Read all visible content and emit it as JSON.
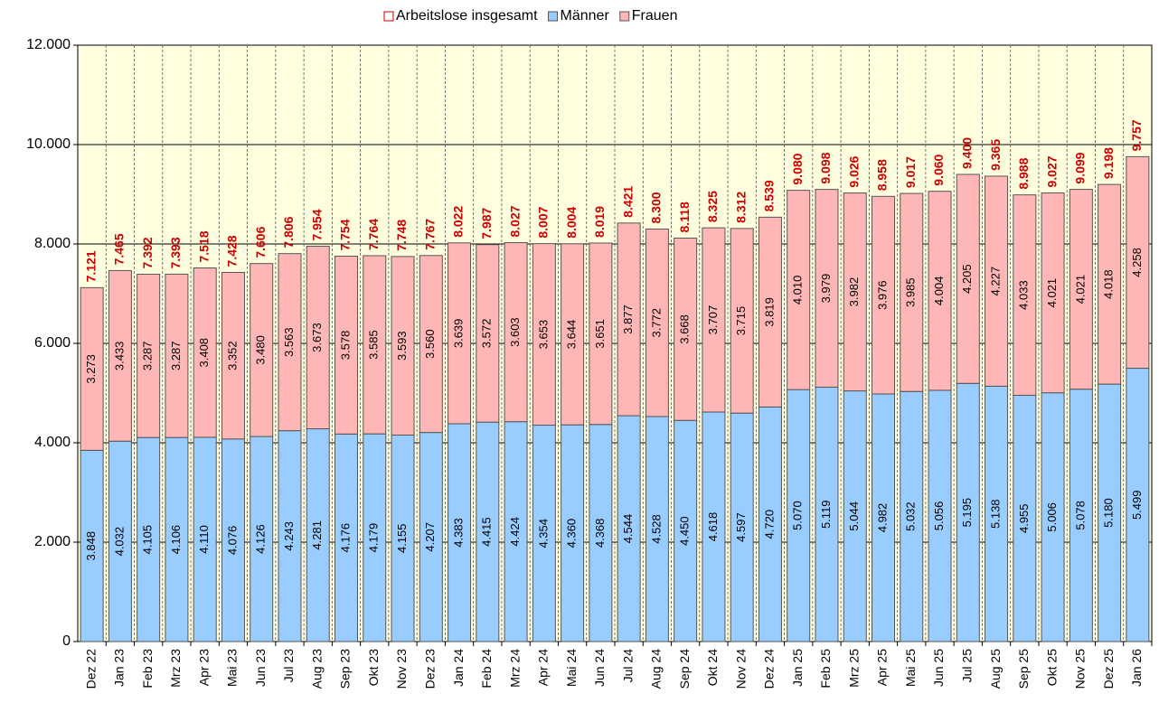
{
  "chart_data": {
    "type": "stacked_bar",
    "categories": [
      "Dez 22",
      "Jan 23",
      "Feb 23",
      "Mrz 23",
      "Apr 23",
      "Mai 23",
      "Jun 23",
      "Jul 23",
      "Aug 23",
      "Sep 23",
      "Okt 23",
      "Nov 23",
      "Dez 23",
      "Jan 24",
      "Feb 24",
      "Mrz 24",
      "Apr 24",
      "Mai 24",
      "Jun 24",
      "Jul 24",
      "Aug 24",
      "Sep 24",
      "Okt 24",
      "Nov 24",
      "Dez 24",
      "Jan 25",
      "Feb 25",
      "Mrz 25",
      "Apr 25",
      "Mai 25",
      "Jun 25",
      "Jul 25",
      "Aug 25",
      "Sep 25",
      "Okt 25",
      "Nov 25",
      "Dez 25",
      "Jan 26"
    ],
    "totals": {
      "name": "Arbeitslose insgesamt",
      "color": "#cc0000",
      "values": [
        7121,
        7465,
        7392,
        7393,
        7518,
        7428,
        7606,
        7806,
        7954,
        7754,
        7764,
        7748,
        7767,
        8022,
        7987,
        8027,
        8007,
        8004,
        8019,
        8421,
        8300,
        8118,
        8325,
        8312,
        8539,
        9080,
        9098,
        9026,
        8958,
        9017,
        9060,
        9400,
        9365,
        8988,
        9027,
        9099,
        9198,
        9757
      ],
      "value_labels": [
        "7.121",
        "7.465",
        "7.392",
        "7.393",
        "7.518",
        "7.428",
        "7.606",
        "7.806",
        "7.954",
        "7.754",
        "7.764",
        "7.748",
        "7.767",
        "8.022",
        "7.987",
        "8.027",
        "8.007",
        "8.004",
        "8.019",
        "8.421",
        "8.300",
        "8.118",
        "8.325",
        "8.312",
        "8.539",
        "9.080",
        "9.098",
        "9.026",
        "8.958",
        "9.017",
        "9.060",
        "9.400",
        "9.365",
        "8.988",
        "9.027",
        "9.099",
        "9.198",
        "9.757"
      ]
    },
    "series": [
      {
        "name": "Männer",
        "color": "#99ccff",
        "values": [
          3848,
          4032,
          4105,
          4106,
          4110,
          4076,
          4126,
          4243,
          4281,
          4176,
          4179,
          4155,
          4207,
          4383,
          4415,
          4424,
          4354,
          4360,
          4368,
          4544,
          4528,
          4450,
          4618,
          4597,
          4720,
          5070,
          5119,
          5044,
          4982,
          5032,
          5056,
          5195,
          5138,
          4955,
          5006,
          5078,
          5180,
          5499
        ],
        "value_labels": [
          "3.848",
          "4.032",
          "4.105",
          "4.106",
          "4.110",
          "4.076",
          "4.126",
          "4.243",
          "4.281",
          "4.176",
          "4.179",
          "4.155",
          "4.207",
          "4.383",
          "4.415",
          "4.424",
          "4.354",
          "4.360",
          "4.368",
          "4.544",
          "4.528",
          "4.450",
          "4.618",
          "4.597",
          "4.720",
          "5.070",
          "5.119",
          "5.044",
          "4.982",
          "5.032",
          "5.056",
          "5.195",
          "5.138",
          "4.955",
          "5.006",
          "5.078",
          "5.180",
          "5.499"
        ]
      },
      {
        "name": "Frauen",
        "color": "#ffb6b6",
        "values": [
          3273,
          3433,
          3287,
          3287,
          3408,
          3352,
          3480,
          3563,
          3673,
          3578,
          3585,
          3593,
          3560,
          3639,
          3572,
          3603,
          3653,
          3644,
          3651,
          3877,
          3772,
          3668,
          3707,
          3715,
          3819,
          4010,
          3979,
          3982,
          3976,
          3985,
          4004,
          4205,
          4227,
          4033,
          4021,
          4021,
          4018,
          4258
        ],
        "value_labels": [
          "3.273",
          "3.433",
          "3.287",
          "3.287",
          "3.408",
          "3.352",
          "3.480",
          "3.563",
          "3.673",
          "3.578",
          "3.585",
          "3.593",
          "3.560",
          "3.639",
          "3.572",
          "3.603",
          "3.653",
          "3.644",
          "3.651",
          "3.877",
          "3.772",
          "3.668",
          "3.707",
          "3.715",
          "3.819",
          "4.010",
          "3.979",
          "3.982",
          "3.976",
          "3.985",
          "4.004",
          "4.205",
          "4.227",
          "4.033",
          "4.021",
          "4.021",
          "4.018",
          "4.258"
        ]
      }
    ],
    "ylim": [
      0,
      12000
    ],
    "yticks": [
      0,
      {
        "value": 2000,
        "label": "2.000"
      },
      {
        "value": 4000,
        "label": "4.000"
      },
      {
        "value": 6000,
        "label": "6.000"
      },
      {
        "value": 8000,
        "label": "8.000"
      },
      {
        "value": 10000,
        "label": "10.000"
      },
      {
        "value": 12000,
        "label": "12.000"
      }
    ],
    "grid": true,
    "legend": "top"
  }
}
